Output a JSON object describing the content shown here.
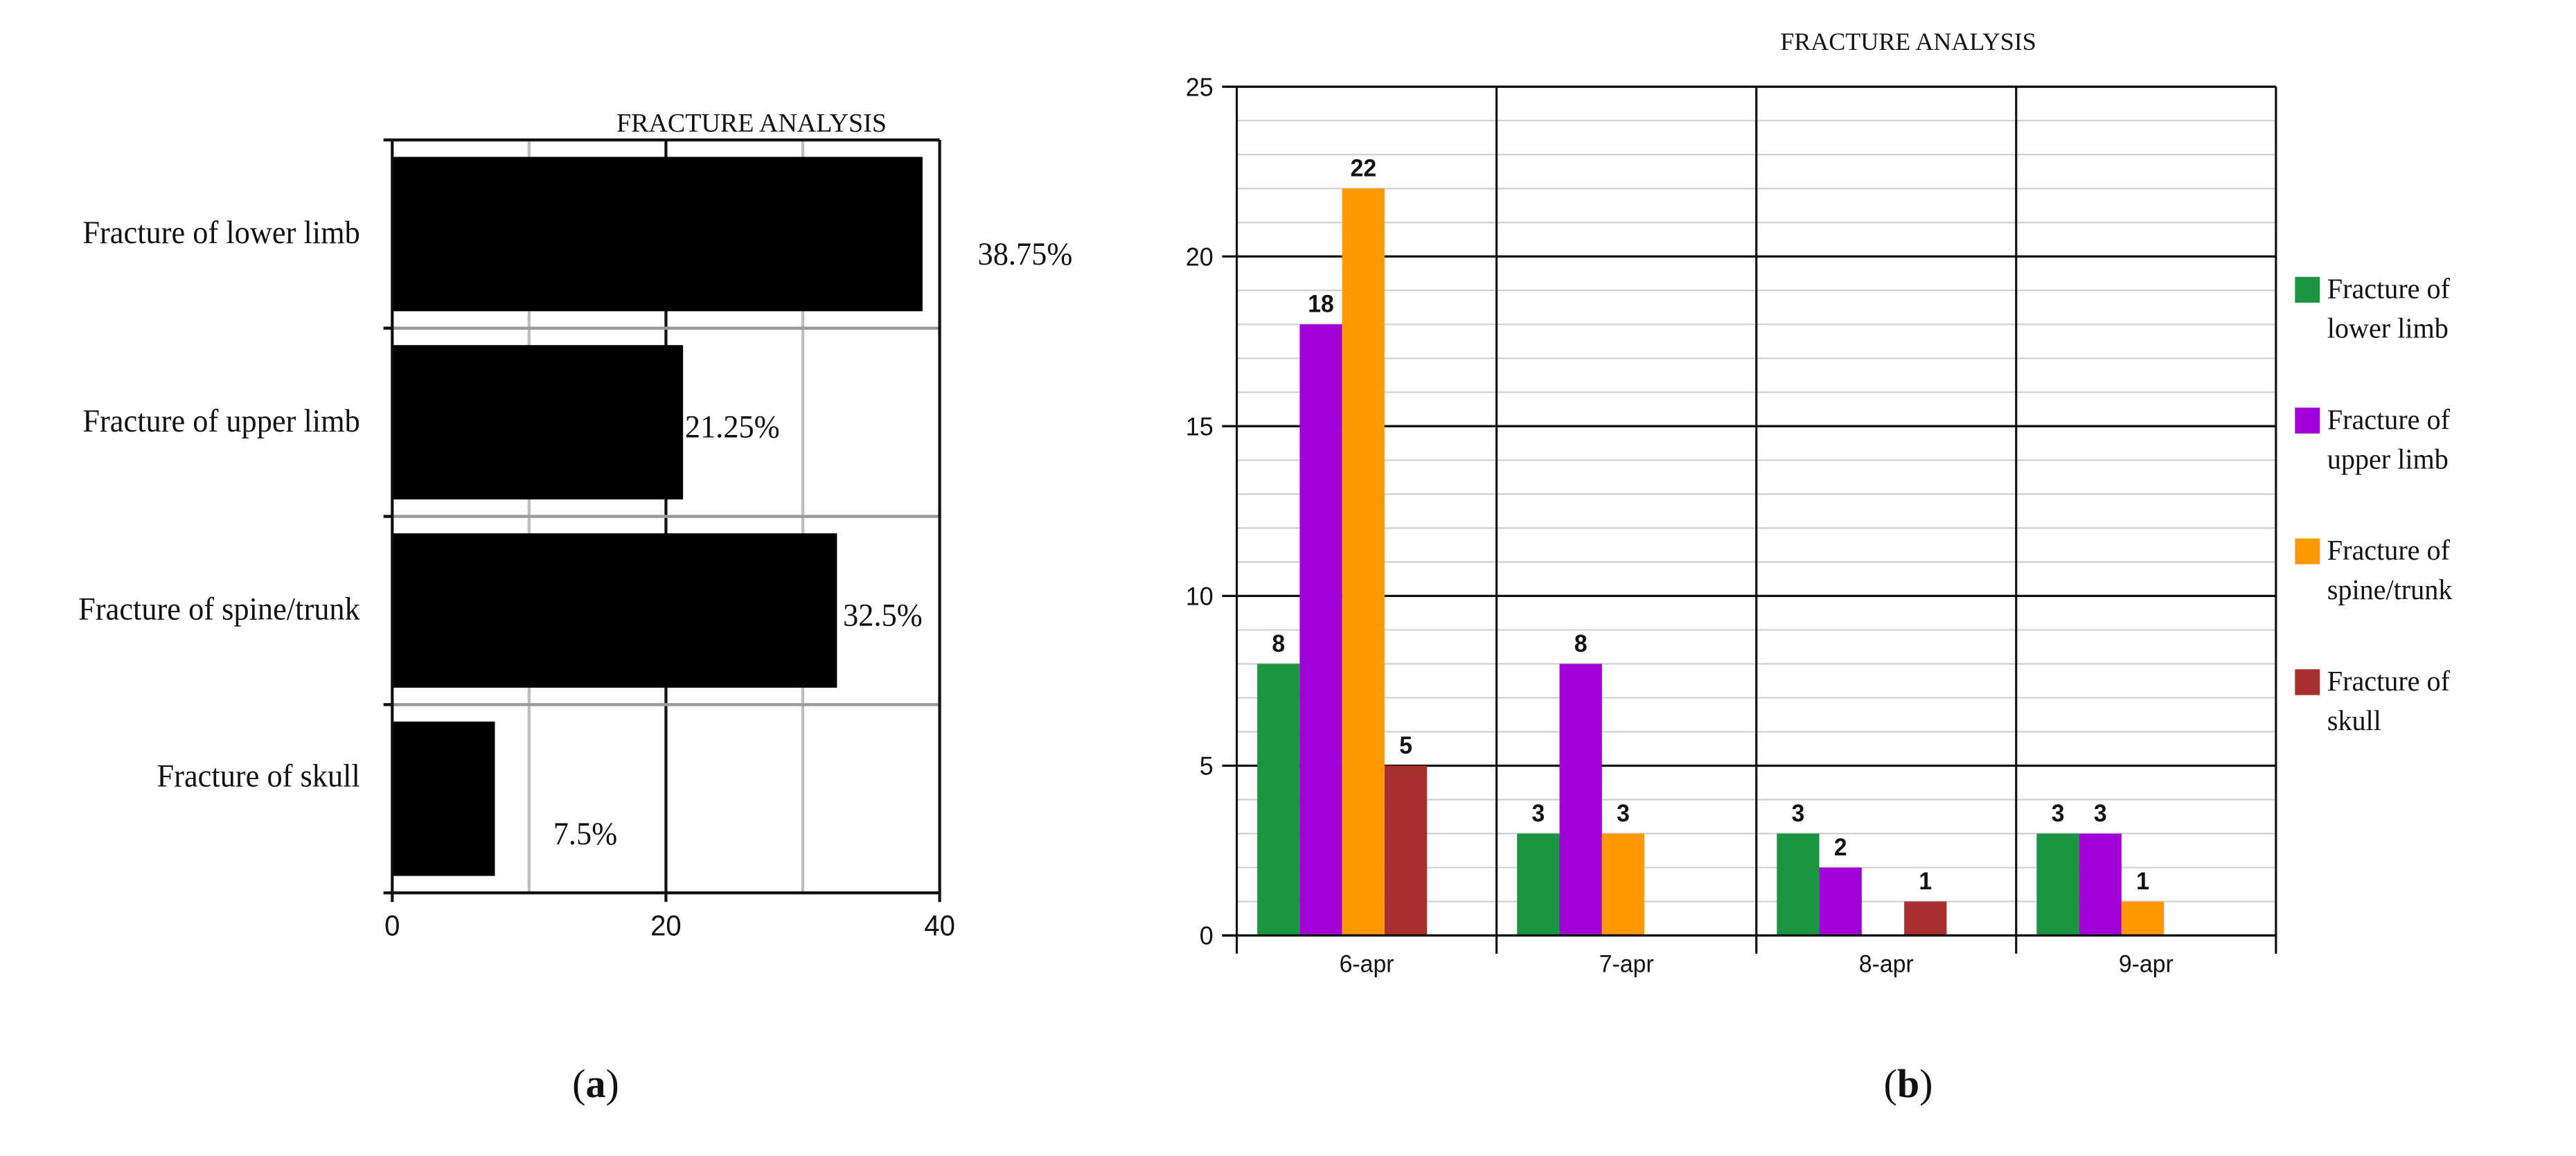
{
  "chart_data": [
    {
      "type": "bar",
      "orientation": "horizontal",
      "title": "FRACTURE ANALYSIS",
      "panel_label": "(a)",
      "categories": [
        "Fracture of lower limb",
        "Fracture of upper limb",
        "Fracture of spine/trunk",
        "Fracture of skull"
      ],
      "values": [
        38.75,
        21.25,
        32.5,
        7.5
      ],
      "data_labels": [
        "38.75%",
        "21.25%",
        "32.5%",
        "7.5%"
      ],
      "xticks": [
        "0",
        "20",
        "40"
      ],
      "xlim": [
        0,
        40
      ],
      "bar_color": "#000000",
      "grid": true
    },
    {
      "type": "bar",
      "title": "FRACTURE ANALYSIS",
      "panel_label": "(b)",
      "categories": [
        "6-apr",
        "7-apr",
        "8-apr",
        "9-apr"
      ],
      "series": [
        {
          "name": "Fracture of lower limb",
          "legend_lines": [
            "Fracture of",
            "lower limb"
          ],
          "color": "#1a9641",
          "values": [
            8,
            3,
            3,
            3
          ],
          "labels": [
            "8",
            "3",
            "3",
            "3"
          ]
        },
        {
          "name": "Fracture of upper limb",
          "legend_lines": [
            "Fracture of",
            "upper limb"
          ],
          "color": "#a100d6",
          "values": [
            18,
            8,
            2,
            3
          ],
          "labels": [
            "18",
            "8",
            "2",
            "3"
          ]
        },
        {
          "name": "Fracture of spine/trunk",
          "legend_lines": [
            "Fracture of",
            "spine/trunk"
          ],
          "color": "#ff9900",
          "values": [
            22,
            3,
            0,
            1
          ],
          "labels": [
            "22",
            "3",
            "",
            "1"
          ]
        },
        {
          "name": "Fracture of skull",
          "legend_lines": [
            "Fracture of",
            "skull"
          ],
          "color": "#a8312f",
          "values": [
            5,
            0,
            1,
            0
          ],
          "labels": [
            "5",
            "",
            "1",
            ""
          ]
        }
      ],
      "yticks": [
        "0",
        "5",
        "10",
        "15",
        "20",
        "25"
      ],
      "ylim": [
        0,
        25
      ],
      "legend_position": "right",
      "grid": true
    }
  ]
}
